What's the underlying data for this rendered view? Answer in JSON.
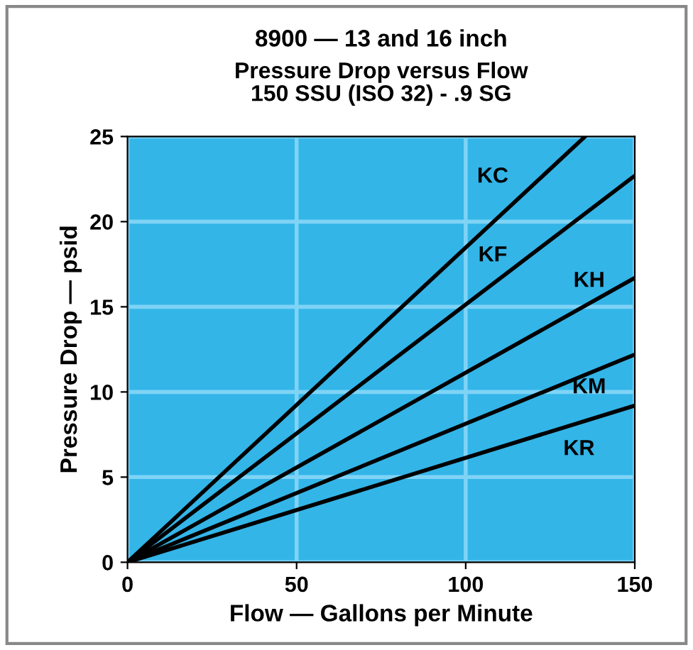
{
  "chart_data": {
    "type": "line",
    "title": "8900 — 13 and 16 inch",
    "subtitle": "Pressure Drop versus Flow\n150 SSU (ISO 32) - .9 SG",
    "xlabel": "Flow — Gallons per Minute",
    "ylabel": "Pressure Drop — psid",
    "xlim": [
      0,
      150
    ],
    "ylim": [
      0,
      25
    ],
    "xticks": [
      0,
      50,
      100,
      150
    ],
    "yticks": [
      0,
      5,
      10,
      15,
      20,
      25
    ],
    "grid": true,
    "legend": false,
    "marker": "none",
    "line_style": "solid",
    "series": [
      {
        "name": "KC",
        "color": "#000000",
        "x": [
          0,
          135.3
        ],
        "values": [
          0,
          25
        ]
      },
      {
        "name": "KF",
        "color": "#000000",
        "x": [
          0,
          150
        ],
        "values": [
          0,
          22.7
        ]
      },
      {
        "name": "KH",
        "color": "#000000",
        "x": [
          0,
          150
        ],
        "values": [
          0,
          16.7
        ]
      },
      {
        "name": "KM",
        "color": "#000000",
        "x": [
          0,
          150
        ],
        "values": [
          0,
          12.2
        ]
      },
      {
        "name": "KR",
        "color": "#000000",
        "x": [
          0,
          150
        ],
        "values": [
          0,
          9.2
        ]
      }
    ]
  }
}
